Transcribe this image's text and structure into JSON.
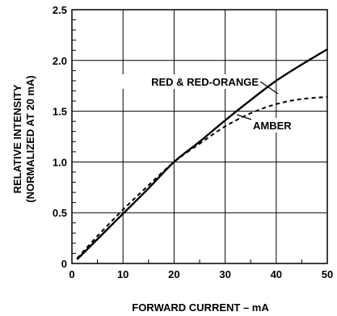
{
  "chart_data": {
    "type": "line",
    "xlabel": "FORWARD CURRENT – mA",
    "ylabel": [
      "RELATIVE INTENSITY",
      "(NORMALIZED AT 20 mA)"
    ],
    "xlim": [
      0,
      50
    ],
    "ylim": [
      0,
      2.5
    ],
    "grid": true,
    "xticks": [
      0,
      10,
      20,
      30,
      40,
      50
    ],
    "yticks": [
      0,
      0.5,
      1.0,
      1.5,
      2.0,
      2.5
    ],
    "xtick_labels": [
      "0",
      "10",
      "20",
      "30",
      "40",
      "50"
    ],
    "ytick_labels": [
      "0",
      "0.5",
      "1.0",
      "1.5",
      "2.0",
      "2.5"
    ],
    "series": [
      {
        "name": "RED & RED-ORANGE",
        "line_style": "solid",
        "x": [
          1,
          5,
          10,
          15,
          20,
          25,
          30,
          35,
          40,
          45,
          50
        ],
        "y": [
          0.04,
          0.24,
          0.49,
          0.74,
          1.0,
          1.2,
          1.41,
          1.61,
          1.8,
          1.96,
          2.11
        ]
      },
      {
        "name": "AMBER",
        "line_style": "dashed",
        "x": [
          1,
          5,
          10,
          15,
          20,
          25,
          30,
          35,
          40,
          45,
          50
        ],
        "y": [
          0.05,
          0.27,
          0.53,
          0.77,
          1.0,
          1.18,
          1.35,
          1.48,
          1.57,
          1.62,
          1.64
        ]
      }
    ],
    "annotations": [
      {
        "text": "RED & RED-ORANGE",
        "series": 0,
        "x": 37.5,
        "y": 1.72
      },
      {
        "text": "AMBER",
        "series": 1,
        "x": 34.5,
        "y": 1.45
      }
    ]
  }
}
